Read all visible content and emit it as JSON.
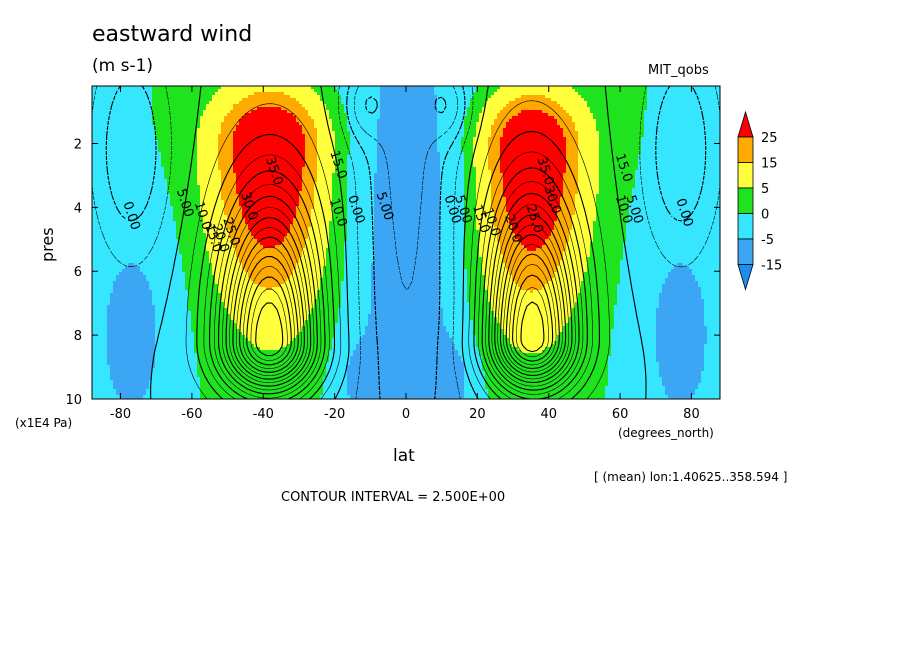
{
  "title": "eastward wind",
  "units": "(m s-1)",
  "dataset": "MIT_qobs",
  "xlabel": "lat",
  "ylabel": "pres",
  "xunits": "(degrees_north)",
  "yunits": "(x1E4 Pa)",
  "lon_note": "[ (mean) lon:1.40625..358.594 ]",
  "contour_interval": "CONTOUR INTERVAL = 2.500E+00",
  "colors": {
    "ccn15": "#1f8cf0",
    "ccn5": "#3ca6f5",
    "cc0": "#36e6ff",
    "cc5": "#1ee31e",
    "cc15": "#ffff3c",
    "cc25": "#ffaa00",
    "cc30": "#ff0000"
  },
  "chart_data": {
    "type": "heatmap",
    "title": "eastward wind",
    "subtitle": "(m s-1)",
    "xlabel": "lat",
    "ylabel": "pres",
    "xlim": [
      -88,
      88
    ],
    "ylim": [
      10,
      0.2
    ],
    "x_ticks": [
      -80,
      -60,
      -40,
      -20,
      0,
      20,
      40,
      60,
      80
    ],
    "y_ticks": [
      2,
      4,
      6,
      8,
      10
    ],
    "colorbar": {
      "labels": [
        "25",
        "15",
        "5",
        "0",
        "-5",
        "-15"
      ],
      "bins": [
        {
          "min": 25,
          "color": "#ff0000"
        },
        {
          "min": 15,
          "max": 25,
          "color": "#ffaa00"
        },
        {
          "min": 5,
          "max": 15,
          "color": "#ffff3c"
        },
        {
          "min": 0,
          "max": 5,
          "color": "#1ee31e"
        },
        {
          "min": -5,
          "max": 0,
          "color": "#36e6ff"
        },
        {
          "min": -15,
          "max": -5,
          "color": "#3ca6f5"
        },
        {
          "max": -15,
          "color": "#1f8cf0"
        }
      ]
    },
    "contour_interval": 2.5,
    "jets": [
      {
        "lat": -38,
        "pres": 2.0,
        "max_speed": 37
      },
      {
        "lat": 35,
        "pres": 2.1,
        "max_speed": 37
      }
    ],
    "contour_labels": [
      {
        "text": "35.0",
        "lat": -38,
        "pres": 2.9
      },
      {
        "text": "30.0",
        "lat": -45,
        "pres": 4.0
      },
      {
        "text": "25.0",
        "lat": -50,
        "pres": 4.8
      },
      {
        "text": "20.0",
        "lat": -53,
        "pres": 5.0
      },
      {
        "text": "15.0",
        "lat": -55,
        "pres": 5.0
      },
      {
        "text": "10.0",
        "lat": -58,
        "pres": 4.3
      },
      {
        "text": "5.00",
        "lat": -63,
        "pres": 3.9
      },
      {
        "text": "0.00",
        "lat": -78,
        "pres": 4.3
      },
      {
        "text": "15.0",
        "lat": -20,
        "pres": 2.7
      },
      {
        "text": "10.0",
        "lat": -20,
        "pres": 4.2
      },
      {
        "text": "0.00",
        "lat": -15,
        "pres": 4.1
      },
      {
        "text": "5.00",
        "lat": -7,
        "pres": 4.0
      },
      {
        "text": "35.0",
        "lat": 38,
        "pres": 2.9
      },
      {
        "text": "30.0",
        "lat": 40,
        "pres": 3.8
      },
      {
        "text": "25.0",
        "lat": 35,
        "pres": 4.4
      },
      {
        "text": "20.0",
        "lat": 29,
        "pres": 4.7
      },
      {
        "text": "10.0",
        "lat": 23,
        "pres": 4.5
      },
      {
        "text": "15.0",
        "lat": 20,
        "pres": 4.4
      },
      {
        "text": "5.00",
        "lat": 15,
        "pres": 4.1
      },
      {
        "text": "0.00",
        "lat": 12,
        "pres": 4.1
      },
      {
        "text": "15.0",
        "lat": 60,
        "pres": 2.8
      },
      {
        "text": "10.0",
        "lat": 60,
        "pres": 4.1
      },
      {
        "text": "5.00",
        "lat": 63,
        "pres": 4.1
      },
      {
        "text": "0.00",
        "lat": 77,
        "pres": 4.2
      }
    ]
  }
}
